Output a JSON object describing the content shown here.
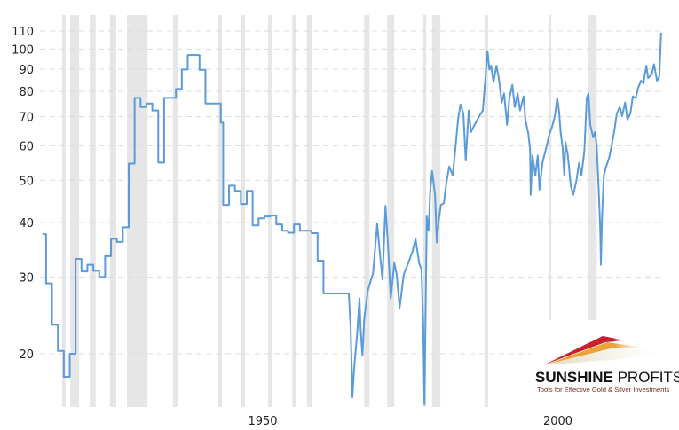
{
  "chart_data": {
    "type": "line",
    "title": "",
    "xlabel": "",
    "ylabel": "",
    "y_scale": "log",
    "ylim": [
      15,
      120
    ],
    "xlim": [
      1915.4,
      2020.2
    ],
    "y_ticks": [
      "110",
      "100",
      "90",
      "80",
      "70",
      "60",
      "50",
      "40",
      "30",
      "20"
    ],
    "x_ticks": [
      {
        "year": 1950,
        "label": "1950"
      },
      {
        "year": 2000,
        "label": "2000"
      }
    ],
    "grid": "horizontal dashed",
    "legend": "none",
    "series_color": "#5b9bd9",
    "band_color": "#e6e6e6",
    "shaded_periods": [
      [
        1918.7,
        1919.3
      ],
      [
        1920.1,
        1921.6
      ],
      [
        1923.4,
        1924.4
      ],
      [
        1926.8,
        1927.9
      ],
      [
        1929.7,
        1933.2
      ],
      [
        1937.5,
        1938.4
      ],
      [
        1945.2,
        1945.8
      ],
      [
        1949.0,
        1949.7
      ],
      [
        1953.6,
        1954.2
      ],
      [
        1957.7,
        1958.3
      ],
      [
        1960.2,
        1961.0
      ],
      [
        1969.9,
        1970.8
      ],
      [
        1973.8,
        1975.0
      ],
      [
        1979.9,
        1980.4
      ],
      [
        1981.4,
        1982.8
      ],
      [
        1990.3,
        1990.9
      ],
      [
        2001.1,
        2001.6
      ],
      [
        2007.9,
        2009.3
      ]
    ],
    "series": [
      {
        "step_values": [
          [
            1915.4,
            37.6
          ],
          [
            1916,
            29
          ],
          [
            1917,
            23.3
          ],
          [
            1918,
            20.3
          ],
          [
            1919,
            17.7
          ],
          [
            1920,
            20
          ],
          [
            1921,
            33
          ],
          [
            1922,
            30.9
          ],
          [
            1923,
            32
          ],
          [
            1924,
            31
          ],
          [
            1925,
            30
          ],
          [
            1926,
            33.5
          ],
          [
            1927,
            36.7
          ],
          [
            1928,
            36.1
          ],
          [
            1929,
            39
          ],
          [
            1930,
            54.6
          ],
          [
            1931,
            77.3
          ],
          [
            1932,
            73.6
          ],
          [
            1933,
            75
          ],
          [
            1934,
            72.3
          ],
          [
            1935,
            54.9
          ],
          [
            1936,
            77.3
          ],
          [
            1938,
            81
          ],
          [
            1939,
            89.8
          ],
          [
            1940,
            96.9
          ],
          [
            1942,
            89.6
          ],
          [
            1943,
            75
          ],
          [
            1945.6,
            67.8
          ],
          [
            1946,
            43.9
          ],
          [
            1947,
            48.6
          ],
          [
            1948,
            47.3
          ],
          [
            1949,
            44.1
          ],
          [
            1950,
            47.3
          ],
          [
            1951,
            39.4
          ],
          [
            1952,
            40.9
          ],
          [
            1953,
            41.3
          ],
          [
            1954,
            41.5
          ],
          [
            1955,
            39.6
          ],
          [
            1956,
            38.3
          ],
          [
            1957,
            37.9
          ],
          [
            1958,
            39.6
          ],
          [
            1959,
            38.3
          ],
          [
            1961,
            37.8
          ],
          [
            1962,
            32.7
          ],
          [
            1963,
            27.5
          ]
        ],
        "values": [
          [
            1967.3,
            27.3
          ],
          [
            1967.6,
            23
          ],
          [
            1967.9,
            15.9
          ],
          [
            1968.2,
            18.6
          ],
          [
            1968.7,
            22.2
          ],
          [
            1969.1,
            26.8
          ],
          [
            1969.3,
            22.7
          ],
          [
            1969.6,
            19.8
          ],
          [
            1969.9,
            24
          ],
          [
            1970.5,
            27.9
          ],
          [
            1971.4,
            30.6
          ],
          [
            1972.1,
            39.7
          ],
          [
            1972.6,
            33.5
          ],
          [
            1973.0,
            29.6
          ],
          [
            1973.5,
            43.7
          ],
          [
            1973.9,
            36
          ],
          [
            1974.4,
            26.8
          ],
          [
            1975.0,
            32.3
          ],
          [
            1975.4,
            30.4
          ],
          [
            1975.9,
            25.5
          ],
          [
            1976.6,
            30.4
          ],
          [
            1977.4,
            32.4
          ],
          [
            1978.1,
            34.4
          ],
          [
            1978.6,
            36.7
          ],
          [
            1979.2,
            32.3
          ],
          [
            1979.6,
            31.2
          ],
          [
            1979.9,
            23.2
          ],
          [
            1980.1,
            15.3
          ],
          [
            1980.4,
            32
          ],
          [
            1980.5,
            41.3
          ],
          [
            1980.8,
            38.3
          ],
          [
            1981.1,
            47.6
          ],
          [
            1981.4,
            52.5
          ],
          [
            1981.9,
            46.3
          ],
          [
            1982.2,
            36
          ],
          [
            1982.5,
            40.2
          ],
          [
            1982.9,
            43.9
          ],
          [
            1983.4,
            44.3
          ],
          [
            1983.8,
            49.1
          ],
          [
            1984.3,
            53.8
          ],
          [
            1984.9,
            51.3
          ],
          [
            1985.3,
            58.3
          ],
          [
            1985.8,
            68.9
          ],
          [
            1986.2,
            74.6
          ],
          [
            1986.7,
            71.2
          ],
          [
            1987.1,
            55.5
          ],
          [
            1987.6,
            72.3
          ],
          [
            1988.0,
            64.5
          ],
          [
            1988.6,
            67
          ],
          [
            1989.4,
            70.2
          ],
          [
            1990.0,
            72.3
          ],
          [
            1990.3,
            81.4
          ],
          [
            1990.8,
            98.9
          ],
          [
            1991.1,
            89.7
          ],
          [
            1991.4,
            91.6
          ],
          [
            1991.8,
            84
          ],
          [
            1992.3,
            91.6
          ],
          [
            1992.7,
            85.8
          ],
          [
            1993.2,
            75.4
          ],
          [
            1993.6,
            79.1
          ],
          [
            1994.1,
            67
          ],
          [
            1994.5,
            77.2
          ],
          [
            1995.0,
            82.8
          ],
          [
            1995.4,
            73.6
          ],
          [
            1995.9,
            79.1
          ],
          [
            1996.3,
            72.3
          ],
          [
            1996.9,
            77.9
          ],
          [
            1997.2,
            68.9
          ],
          [
            1997.7,
            64
          ],
          [
            1998.0,
            59
          ],
          [
            1998.1,
            46.3
          ],
          [
            1998.4,
            57
          ],
          [
            1998.9,
            51.3
          ],
          [
            1999.3,
            57
          ],
          [
            1999.6,
            47.6
          ],
          [
            2000.1,
            54.8
          ],
          [
            2000.4,
            57
          ],
          [
            2000.8,
            59.8
          ],
          [
            2001.3,
            64
          ],
          [
            2001.7,
            66.1
          ],
          [
            2002.2,
            70.2
          ],
          [
            2002.6,
            77.2
          ],
          [
            2002.9,
            72.3
          ],
          [
            2003.2,
            64
          ],
          [
            2003.5,
            59.8
          ],
          [
            2003.8,
            51.3
          ],
          [
            2004.0,
            61.2
          ],
          [
            2004.4,
            57
          ],
          [
            2004.9,
            48.6
          ],
          [
            2005.3,
            46.3
          ],
          [
            2005.8,
            49.5
          ],
          [
            2006.3,
            54.8
          ],
          [
            2006.7,
            51.3
          ],
          [
            2007.2,
            58.3
          ],
          [
            2007.6,
            77.2
          ],
          [
            2007.9,
            79.1
          ],
          [
            2008.2,
            67
          ],
          [
            2008.7,
            62.7
          ],
          [
            2009.0,
            64.5
          ],
          [
            2009.3,
            59.8
          ],
          [
            2009.6,
            48.6
          ],
          [
            2009.9,
            38.3
          ],
          [
            2010.0,
            32
          ],
          [
            2010.2,
            41.3
          ],
          [
            2010.5,
            51.3
          ],
          [
            2010.9,
            53.8
          ],
          [
            2011.4,
            56.3
          ],
          [
            2011.8,
            59.8
          ],
          [
            2012.3,
            65.3
          ],
          [
            2012.7,
            71.2
          ],
          [
            2013.2,
            73.6
          ],
          [
            2013.6,
            70.2
          ],
          [
            2014.1,
            75.4
          ],
          [
            2014.5,
            68.9
          ],
          [
            2015.0,
            71.2
          ],
          [
            2015.4,
            77.9
          ],
          [
            2015.9,
            77.2
          ],
          [
            2016.3,
            81.4
          ],
          [
            2016.8,
            84.6
          ],
          [
            2017.2,
            83.4
          ],
          [
            2017.7,
            91.6
          ],
          [
            2018.0,
            85.8
          ],
          [
            2018.3,
            86.6
          ],
          [
            2018.6,
            87.3
          ],
          [
            2019.0,
            92.3
          ],
          [
            2019.5,
            84.6
          ],
          [
            2019.9,
            86.6
          ],
          [
            2020.2,
            109
          ]
        ]
      }
    ]
  },
  "logo": {
    "name_bold": "SUNSHINE",
    "name_regular": " PROFITS",
    "tagline": "Tools for Effective Gold & Silver Investments",
    "colors": [
      "#c8202f",
      "#e8a12a",
      "#e9e0c8"
    ]
  }
}
